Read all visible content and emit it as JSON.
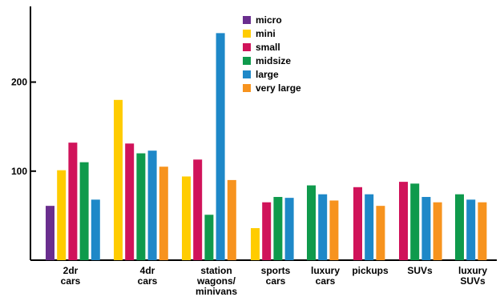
{
  "chart_data": {
    "type": "bar",
    "title": "",
    "xlabel": "",
    "ylabel": "",
    "ylim": [
      0,
      285
    ],
    "yticks": [
      100,
      200
    ],
    "grid": false,
    "legend_position": "top-center",
    "categories": [
      [
        "2dr",
        "cars"
      ],
      [
        "4dr",
        "cars"
      ],
      [
        "station",
        "wagons/",
        "minivans"
      ],
      [
        "sports",
        "cars"
      ],
      [
        "luxury",
        "cars"
      ],
      [
        "pickups"
      ],
      [
        "SUVs"
      ],
      [
        "luxury",
        "SUVs"
      ]
    ],
    "series": [
      {
        "name": "micro",
        "color": "#6a2e8e",
        "values": [
          61,
          null,
          null,
          null,
          null,
          null,
          null,
          null
        ]
      },
      {
        "name": "mini",
        "color": "#ffcc00",
        "values": [
          101,
          180,
          94,
          36,
          null,
          null,
          null,
          null
        ]
      },
      {
        "name": "small",
        "color": "#d0135a",
        "values": [
          132,
          131,
          113,
          65,
          null,
          82,
          88,
          null
        ]
      },
      {
        "name": "midsize",
        "color": "#0f9a4c",
        "values": [
          110,
          120,
          51,
          71,
          84,
          null,
          86,
          74
        ]
      },
      {
        "name": "large",
        "color": "#1e88c8",
        "values": [
          68,
          123,
          255,
          70,
          74,
          74,
          71,
          68
        ]
      },
      {
        "name": "very large",
        "color": "#f7931e",
        "values": [
          null,
          105,
          90,
          null,
          67,
          61,
          65,
          65
        ]
      }
    ]
  }
}
